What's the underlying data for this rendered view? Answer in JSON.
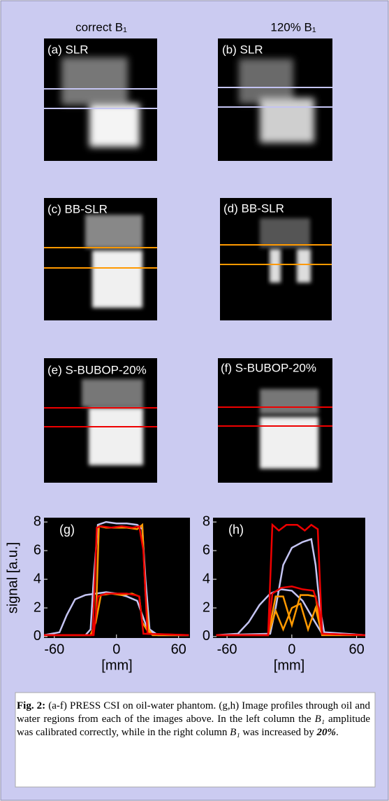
{
  "column_headers": [
    "correct B₁",
    "120% B₁"
  ],
  "panels": [
    "(a) SLR",
    "(b) SLR",
    "(c) BB-SLR",
    "(d) BB-SLR",
    "(e) S-BUBOP-20%",
    "(f) S-BUBOP-20%"
  ],
  "plots": [
    {
      "type": "line",
      "label": "(g)",
      "xlabel": "[mm]",
      "ylabel": "signal [a.u.]",
      "xlim": [
        -70,
        71
      ],
      "ylim": [
        -0.1,
        8.3
      ],
      "xticks": [
        -60,
        0,
        60
      ],
      "yticks": [
        0,
        2,
        4,
        6,
        8
      ],
      "series": [
        {
          "color": "#c4c4f2",
          "x": [
            -70,
            -30,
            -25,
            -22,
            -18,
            -10,
            0,
            10,
            20,
            25,
            28,
            32,
            40,
            70
          ],
          "values": [
            0.1,
            0.1,
            0.5,
            4,
            7.8,
            8,
            7.9,
            7.9,
            7.8,
            7.5,
            4,
            0.5,
            0.1,
            0.1
          ]
        },
        {
          "color": "#c4c4f2",
          "x": [
            -70,
            -55,
            -48,
            -40,
            -30,
            -20,
            -10,
            0,
            10,
            20,
            25,
            30,
            40,
            70
          ],
          "values": [
            0.1,
            0.3,
            1.5,
            2.6,
            2.9,
            3.0,
            3.1,
            3.0,
            2.8,
            2.5,
            1.5,
            0.5,
            0.1,
            0.1
          ]
        },
        {
          "color": "#ff9900",
          "x": [
            -70,
            -25,
            -20,
            -17,
            -10,
            0,
            10,
            20,
            25,
            28,
            31,
            35,
            70
          ],
          "values": [
            0.1,
            0.1,
            1,
            7.7,
            7.6,
            7.6,
            7.6,
            7.5,
            7.8,
            3,
            0.5,
            0.1,
            0.1
          ]
        },
        {
          "color": "#ff9900",
          "x": [
            -70,
            -25,
            -20,
            -15,
            -5,
            5,
            15,
            22,
            25,
            30,
            35,
            70
          ],
          "values": [
            0.1,
            0.1,
            1,
            2.9,
            3,
            2.9,
            3,
            2.8,
            1,
            0.4,
            0.1,
            0.1
          ]
        },
        {
          "color": "#ee0000",
          "x": [
            -70,
            -23,
            -19,
            -15,
            -5,
            5,
            15,
            22,
            26,
            30,
            70
          ],
          "values": [
            0.1,
            0.1,
            7.6,
            7.7,
            7.6,
            7.7,
            7.6,
            7.7,
            6,
            0.2,
            0.1
          ]
        },
        {
          "color": "#ee0000",
          "x": [
            -70,
            -22,
            -18,
            -10,
            0,
            10,
            18,
            22,
            26,
            70
          ],
          "values": [
            0.1,
            0.1,
            2.8,
            3,
            3,
            3,
            2.9,
            2.8,
            0.2,
            0.1
          ]
        }
      ]
    },
    {
      "type": "line",
      "label": "(h)",
      "xlabel": "[mm]",
      "xlim": [
        -73,
        68
      ],
      "ylim": [
        -0.1,
        8.3
      ],
      "xticks": [
        -60,
        0,
        60
      ],
      "yticks": [
        0,
        2,
        4,
        6,
        8
      ],
      "series": [
        {
          "color": "#c4c4f2",
          "x": [
            -70,
            -20,
            -15,
            -8,
            0,
            10,
            18,
            22,
            26,
            30,
            68
          ],
          "values": [
            0.1,
            0.2,
            2,
            5,
            6.2,
            6.6,
            6.8,
            5,
            2,
            0.3,
            0.1
          ]
        },
        {
          "color": "#c4c4f2",
          "x": [
            -70,
            -50,
            -40,
            -30,
            -20,
            -10,
            0,
            10,
            20,
            28,
            68
          ],
          "values": [
            0.1,
            0.2,
            1,
            2.2,
            3,
            3.3,
            3.2,
            2.5,
            1.2,
            0.2,
            0.1
          ]
        },
        {
          "color": "#ff9900",
          "x": [
            -70,
            -22,
            -15,
            -8,
            0,
            8,
            15,
            22,
            28,
            68
          ],
          "values": [
            0.1,
            0.1,
            2.8,
            2.8,
            0.8,
            2.9,
            2.9,
            2.8,
            0.1,
            0.1
          ]
        },
        {
          "color": "#ff9900",
          "x": [
            -70,
            -22,
            -15,
            -8,
            0,
            8,
            15,
            22,
            28,
            68
          ],
          "values": [
            0.1,
            0.1,
            1.8,
            0.5,
            2.0,
            2.3,
            0.5,
            2.0,
            0.1,
            0.1
          ]
        },
        {
          "color": "#ee0000",
          "x": [
            -70,
            -22,
            -18,
            -10,
            0,
            10,
            20,
            25,
            28,
            68
          ],
          "values": [
            0.1,
            0.1,
            3,
            3.4,
            3.5,
            3.3,
            3.2,
            2,
            0.2,
            0.1
          ]
        },
        {
          "color": "#ee0000",
          "x": [
            -70,
            -22,
            -18,
            -12,
            -5,
            5,
            12,
            18,
            24,
            28,
            68
          ],
          "values": [
            0.1,
            0.1,
            7.8,
            7.4,
            7.8,
            7.8,
            7.4,
            7.8,
            7.5,
            0.2,
            0.1
          ]
        }
      ]
    }
  ],
  "caption": [
    {
      "text": "Fig. 2:",
      "bold": true
    },
    {
      "text": " (a-f) PRESS CSI on oil-water phantom. (g,h) Image profiles through oil and water regions from each of the images above. In the left column the "
    },
    {
      "text": "B₁",
      "italic": true
    },
    {
      "text": " amplitude was calibrated correctly, while in the right column "
    },
    {
      "text": "B₁",
      "italic": true
    },
    {
      "text": " was increased by "
    },
    {
      "text": "20%",
      "italic": true,
      "bold": true
    },
    {
      "text": "."
    }
  ]
}
